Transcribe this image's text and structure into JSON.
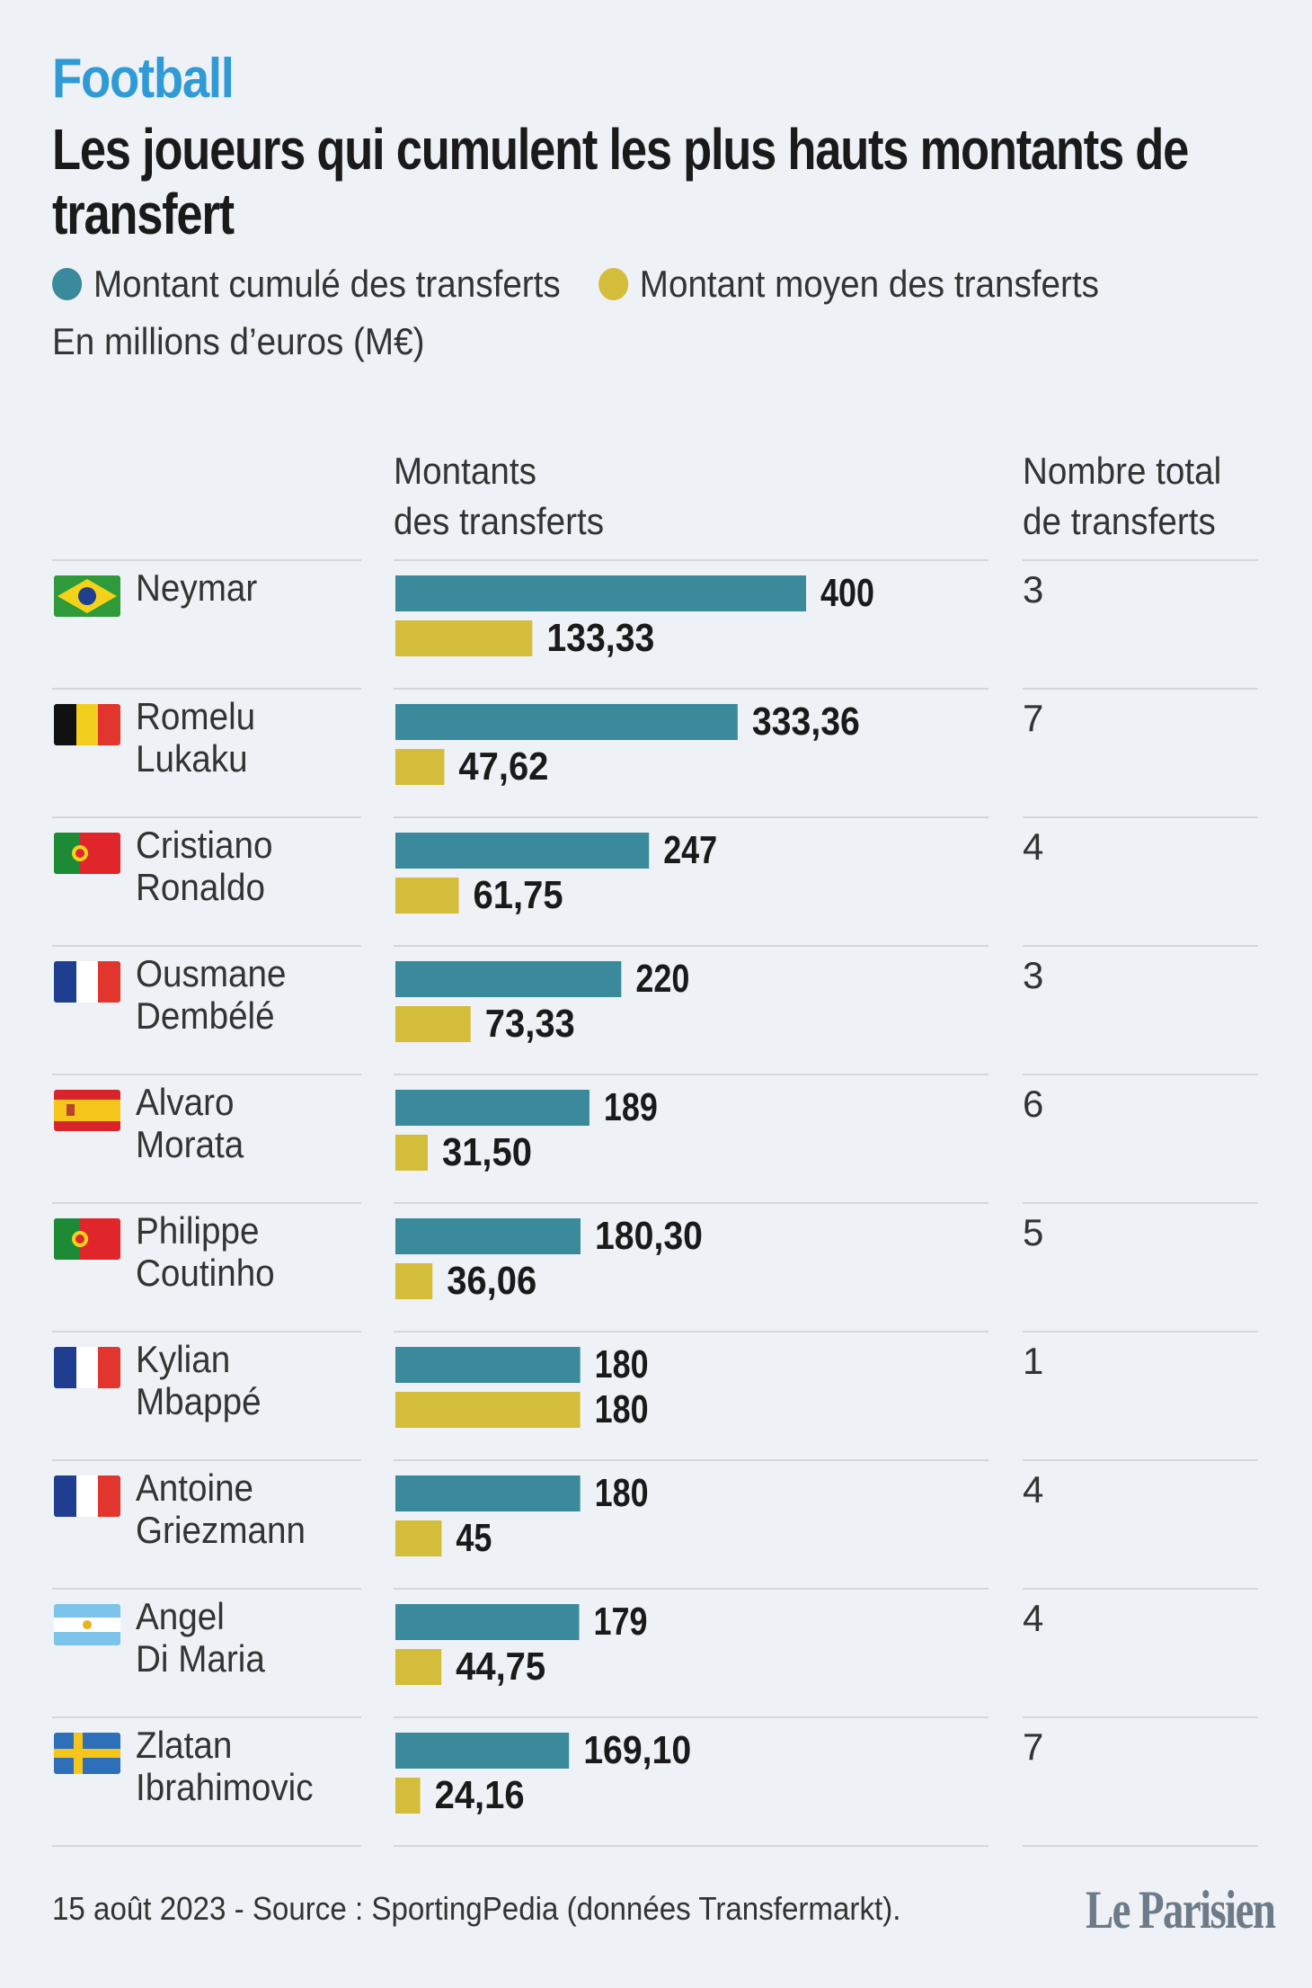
{
  "kicker": "Football",
  "title": "Les joueurs qui cumulent les plus hauts montants de transfert",
  "legend": [
    {
      "label": "Montant cumulé des transferts",
      "color": "#3a8a9c"
    },
    {
      "label": "Montant moyen des transferts",
      "color": "#d4bd3a"
    }
  ],
  "unit_note": "En millions d’euros (M€)",
  "columns": {
    "amounts_line1": "Montants",
    "amounts_line2": "des transferts",
    "count_line1": "Nombre total",
    "count_line2": "de transferts"
  },
  "players": [
    {
      "first": "Neymar",
      "last": "",
      "flag": "brazil-flag",
      "count": "3"
    },
    {
      "first": "Romelu",
      "last": "Lukaku",
      "flag": "belgium-flag",
      "count": "7"
    },
    {
      "first": "Cristiano",
      "last": "Ronaldo",
      "flag": "portugal-flag",
      "count": "4"
    },
    {
      "first": "Ousmane",
      "last": "Dembélé",
      "flag": "france-flag",
      "count": "3"
    },
    {
      "first": "Alvaro",
      "last": "Morata",
      "flag": "spain-flag",
      "count": "6"
    },
    {
      "first": "Philippe",
      "last": "Coutinho",
      "flag": "portugal-flag",
      "count": "5"
    },
    {
      "first": "Kylian",
      "last": "Mbappé",
      "flag": "france-flag",
      "count": "1"
    },
    {
      "first": "Antoine",
      "last": "Griezmann",
      "flag": "france-flag",
      "count": "4"
    },
    {
      "first": "Angel",
      "last": "Di Maria",
      "flag": "argentina-flag",
      "count": "4"
    },
    {
      "first": "Zlatan",
      "last": "Ibrahimovic",
      "flag": "sweden-flag",
      "count": "7"
    }
  ],
  "chart_data": {
    "type": "bar",
    "orientation": "horizontal",
    "categories": [
      "Neymar",
      "Romelu Lukaku",
      "Cristiano Ronaldo",
      "Ousmane Dembélé",
      "Alvaro Morata",
      "Philippe Coutinho",
      "Kylian Mbappé",
      "Antoine Griezmann",
      "Angel Di Maria",
      "Zlatan Ibrahimovic"
    ],
    "series": [
      {
        "name": "Montant cumulé des transferts",
        "color": "#3a8a9c",
        "values": [
          400,
          333.36,
          247,
          220,
          189,
          180.3,
          180,
          180,
          179,
          169.1
        ],
        "labels": [
          "400",
          "333,36",
          "247",
          "220",
          "189",
          "180,30",
          "180",
          "180",
          "179",
          "169,10"
        ]
      },
      {
        "name": "Montant moyen des transferts",
        "color": "#d4bd3a",
        "values": [
          133.33,
          47.62,
          61.75,
          73.33,
          31.5,
          36.06,
          180,
          45,
          44.75,
          24.16
        ],
        "labels": [
          "133,33",
          "47,62",
          "61,75",
          "73,33",
          "31,50",
          "36,06",
          "180",
          "45",
          "44,75",
          "24,16"
        ]
      }
    ],
    "xlim": [
      0,
      400
    ],
    "grid": false,
    "legend_position": "top"
  },
  "footer": "15 août 2023 - Source : SportingPedia (données Transfermarkt).",
  "logo": "Le Parisien"
}
